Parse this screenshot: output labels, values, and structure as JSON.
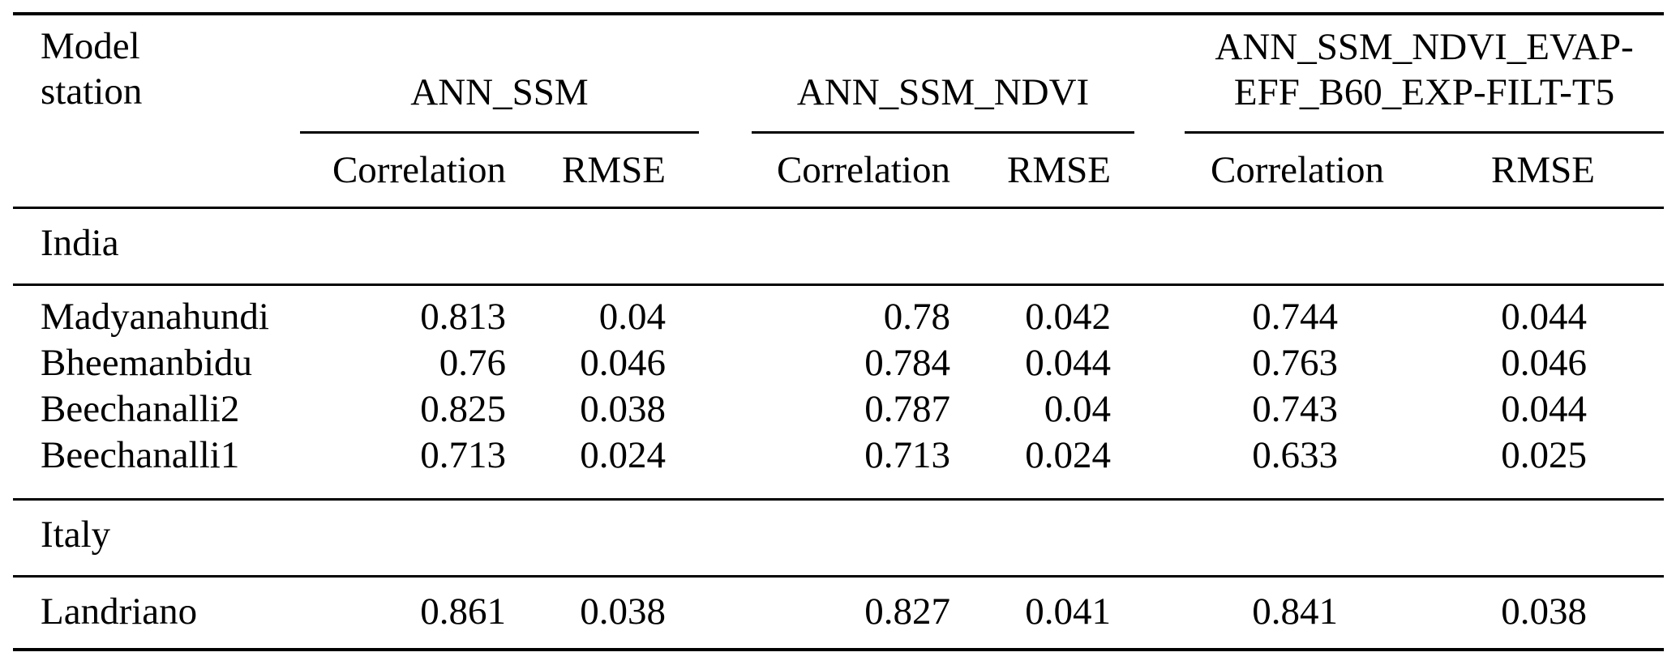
{
  "table": {
    "station_header": {
      "line1": "Model",
      "line2": "station"
    },
    "groups": [
      {
        "name_line1": "ANN_SSM",
        "name_line2": "",
        "correlation_label": "Correlation",
        "rmse_label": "RMSE"
      },
      {
        "name_line1": "ANN_SSM_NDVI",
        "name_line2": "",
        "correlation_label": "Correlation",
        "rmse_label": "RMSE"
      },
      {
        "name_line1": "ANN_SSM_NDVI_EVAP-",
        "name_line2": "EFF_B60_EXP-FILT-T5",
        "correlation_label": "Correlation",
        "rmse_label": "RMSE"
      }
    ],
    "sections": [
      {
        "region": "India",
        "rows": [
          {
            "station": "Madyanahundi",
            "values": [
              "0.813",
              "0.04",
              "0.78",
              "0.042",
              "0.744",
              "0.044"
            ]
          },
          {
            "station": "Bheemanbidu",
            "values": [
              "0.76",
              "0.046",
              "0.784",
              "0.044",
              "0.763",
              "0.046"
            ]
          },
          {
            "station": "Beechanalli2",
            "values": [
              "0.825",
              "0.038",
              "0.787",
              "0.04",
              "0.743",
              "0.044"
            ]
          },
          {
            "station": "Beechanalli1",
            "values": [
              "0.713",
              "0.024",
              "0.713",
              "0.024",
              "0.633",
              "0.025"
            ]
          }
        ]
      },
      {
        "region": "Italy",
        "rows": [
          {
            "station": "Landriano",
            "values": [
              "0.861",
              "0.038",
              "0.827",
              "0.041",
              "0.841",
              "0.038"
            ]
          }
        ]
      }
    ]
  }
}
